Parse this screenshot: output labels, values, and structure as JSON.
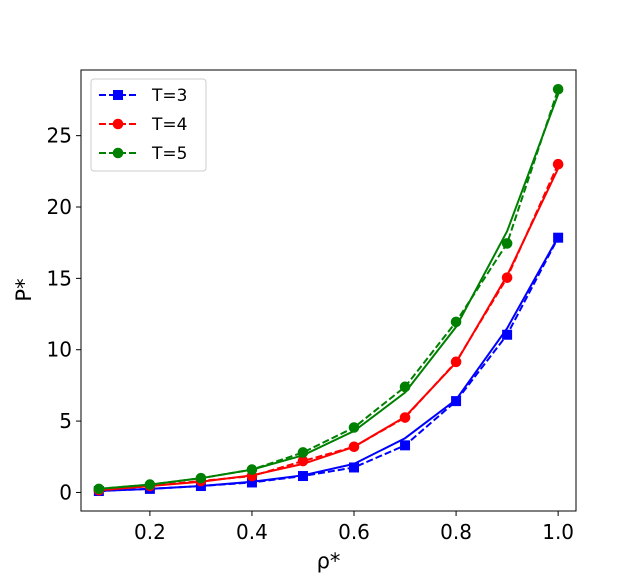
{
  "chart_data": {
    "type": "line",
    "xlabel": "ρ*",
    "ylabel": "P*",
    "xlim": [
      0.065,
      1.035
    ],
    "ylim": [
      -1.3,
      29.6
    ],
    "x_ticks": [
      0.2,
      0.4,
      0.6,
      0.8,
      1.0
    ],
    "x_tick_labels": [
      "0.2",
      "0.4",
      "0.6",
      "0.8",
      "1.0"
    ],
    "y_ticks": [
      0,
      5,
      10,
      15,
      20,
      25
    ],
    "y_tick_labels": [
      "0",
      "5",
      "10",
      "15",
      "20",
      "25"
    ],
    "legend_position": "top-left",
    "grid": false,
    "x": [
      0.1,
      0.2,
      0.3,
      0.4,
      0.5,
      0.6,
      0.7,
      0.8,
      0.9,
      1.0
    ],
    "series": [
      {
        "name": "T=3",
        "color": "#0000ff",
        "marker": "square",
        "linestyle": "dashed",
        "values": [
          0.1,
          0.25,
          0.45,
          0.7,
          1.15,
          1.75,
          3.3,
          6.4,
          11.05,
          17.85
        ],
        "model_values": [
          0.1,
          0.25,
          0.45,
          0.75,
          1.2,
          2.0,
          3.8,
          6.5,
          11.5,
          17.9
        ]
      },
      {
        "name": "T=4",
        "color": "#ff0000",
        "marker": "circle",
        "linestyle": "dashed",
        "values": [
          0.15,
          0.45,
          0.8,
          1.15,
          2.2,
          3.2,
          5.25,
          9.15,
          15.05,
          23.0
        ],
        "model_values": [
          0.15,
          0.45,
          0.75,
          1.2,
          2.0,
          3.2,
          5.3,
          9.1,
          15.2,
          22.7
        ]
      },
      {
        "name": "T=5",
        "color": "#008000",
        "marker": "circle",
        "linestyle": "dashed",
        "values": [
          0.25,
          0.55,
          1.0,
          1.6,
          2.8,
          4.55,
          7.4,
          11.95,
          17.45,
          28.25
        ],
        "model_values": [
          0.25,
          0.55,
          1.0,
          1.6,
          2.6,
          4.3,
          7.0,
          11.6,
          18.3,
          27.9
        ]
      }
    ]
  }
}
